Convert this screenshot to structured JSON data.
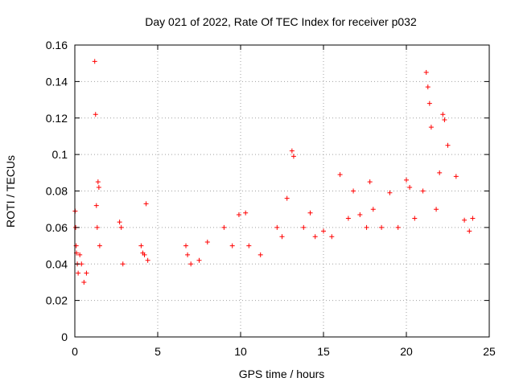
{
  "chart_data": {
    "type": "scatter",
    "title": "Day 021 of 2022, Rate Of TEC Index for receiver p032",
    "xlabel": "GPS time / hours",
    "ylabel": "ROTI / TECUs",
    "xlim": [
      0,
      25
    ],
    "ylim": [
      0,
      0.16
    ],
    "x_ticks": [
      0,
      5,
      10,
      15,
      20,
      25
    ],
    "x_tick_labels": [
      "0",
      "5",
      "10",
      "15",
      "20",
      "25"
    ],
    "y_ticks": [
      0,
      0.02,
      0.04,
      0.06,
      0.08,
      0.1,
      0.12,
      0.14,
      0.16
    ],
    "y_tick_labels": [
      "0",
      "0.02",
      "0.04",
      "0.06",
      "0.08",
      "0.1",
      "0.12",
      "0.14",
      "0.16"
    ],
    "grid": true,
    "marker": "+",
    "marker_color": "#ff0000",
    "data_gap_hours": [
      4.5,
      6.5
    ],
    "series": [
      {
        "x": [
          0.02,
          0.05,
          0.08,
          0.1,
          0.15,
          0.2,
          0.3,
          0.4,
          0.55,
          0.7,
          1.2,
          1.25,
          1.3,
          1.35,
          1.4,
          1.45,
          1.5,
          2.7,
          2.8,
          2.9,
          4.0,
          4.1,
          4.2,
          4.3,
          4.4,
          6.7,
          6.8,
          7.0,
          7.5,
          8.0,
          9.0,
          9.5,
          9.9,
          10.3,
          10.5,
          11.2,
          12.2,
          12.5,
          12.8,
          13.1,
          13.2,
          13.8,
          14.2,
          14.5,
          15.0,
          15.5,
          16.0,
          16.5,
          16.8,
          17.2,
          17.6,
          17.8,
          18.0,
          18.5,
          19.0,
          19.5,
          20.0,
          20.2,
          20.5,
          21.0,
          21.2,
          21.3,
          21.4,
          21.5,
          21.8,
          22.0,
          22.2,
          22.3,
          22.5,
          23.0,
          23.5,
          23.8,
          24.0
        ],
        "y": [
          0.069,
          0.06,
          0.05,
          0.046,
          0.04,
          0.035,
          0.045,
          0.04,
          0.03,
          0.035,
          0.151,
          0.122,
          0.072,
          0.06,
          0.085,
          0.082,
          0.05,
          0.063,
          0.06,
          0.04,
          0.05,
          0.046,
          0.045,
          0.073,
          0.042,
          0.05,
          0.045,
          0.04,
          0.042,
          0.052,
          0.06,
          0.05,
          0.067,
          0.068,
          0.05,
          0.045,
          0.06,
          0.055,
          0.076,
          0.102,
          0.099,
          0.06,
          0.068,
          0.055,
          0.058,
          0.055,
          0.089,
          0.065,
          0.08,
          0.067,
          0.06,
          0.085,
          0.07,
          0.06,
          0.079,
          0.06,
          0.086,
          0.082,
          0.065,
          0.08,
          0.145,
          0.137,
          0.128,
          0.115,
          0.07,
          0.09,
          0.122,
          0.119,
          0.105,
          0.088,
          0.064,
          0.058,
          0.065
        ]
      }
    ]
  }
}
